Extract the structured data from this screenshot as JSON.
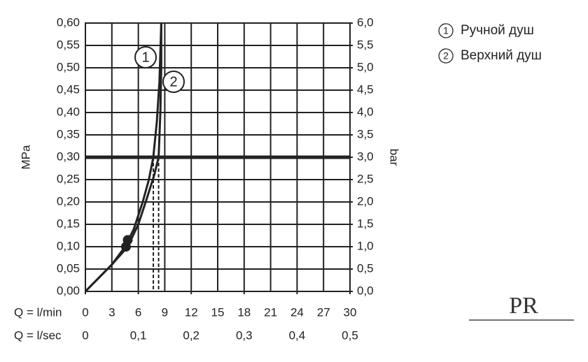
{
  "chart_data": {
    "type": "line",
    "xlabel": "Q = l/min",
    "x2label": "Q = l/sec",
    "ylabel": "MPa",
    "y2label": "bar",
    "xlim": [
      0,
      30
    ],
    "xticks": [
      0,
      3,
      6,
      9,
      12,
      15,
      18,
      21,
      24,
      27,
      30
    ],
    "x2lim": [
      0,
      0.5
    ],
    "x2ticks": [
      0,
      {
        "value": 0.1,
        "label": "0,1"
      },
      {
        "value": 0.2,
        "label": "0,2"
      },
      {
        "value": 0.3,
        "label": "0,3"
      },
      {
        "value": 0.4,
        "label": "0,4"
      },
      {
        "value": 0.5,
        "label": "0,5"
      }
    ],
    "ylim": [
      0,
      0.6
    ],
    "yticks": [
      {
        "value": 0,
        "label": "0,00"
      },
      {
        "value": 0.05,
        "label": "0,05"
      },
      {
        "value": 0.1,
        "label": "0,10"
      },
      {
        "value": 0.15,
        "label": "0,15"
      },
      {
        "value": 0.2,
        "label": "0,20"
      },
      {
        "value": 0.25,
        "label": "0,25"
      },
      {
        "value": 0.3,
        "label": "0,30"
      },
      {
        "value": 0.35,
        "label": "0,35"
      },
      {
        "value": 0.4,
        "label": "0,40"
      },
      {
        "value": 0.45,
        "label": "0,45"
      },
      {
        "value": 0.5,
        "label": "0,50"
      },
      {
        "value": 0.55,
        "label": "0,55"
      },
      {
        "value": 0.6,
        "label": "0,60"
      }
    ],
    "y2lim": [
      0,
      6
    ],
    "y2ticks": [
      {
        "value": 0,
        "label": "0,0"
      },
      {
        "value": 0.5,
        "label": "0,5"
      },
      {
        "value": 1,
        "label": "1,0"
      },
      {
        "value": 1.5,
        "label": "1,5"
      },
      {
        "value": 2,
        "label": "2,0"
      },
      {
        "value": 2.5,
        "label": "2,5"
      },
      {
        "value": 3,
        "label": "3,0"
      },
      {
        "value": 3.5,
        "label": "3,5"
      },
      {
        "value": 4,
        "label": "4,0"
      },
      {
        "value": 4.5,
        "label": "4,5"
      },
      {
        "value": 5,
        "label": "5,0"
      },
      {
        "value": 5.5,
        "label": "5,5"
      },
      {
        "value": 6,
        "label": "6,0"
      }
    ],
    "grid": true,
    "reference_y": 0.3,
    "reference_x": [
      7.7,
      8.3
    ],
    "highlight_points": [
      {
        "x": 4.6,
        "y": 0.1
      },
      {
        "x": 4.8,
        "y": 0.115
      }
    ],
    "series": [
      {
        "name": "Ручной душ",
        "label": "1",
        "color": "#222",
        "x": [
          0,
          1.5,
          3,
          4.5,
          5.5,
          6.5,
          7.2,
          7.7,
          8.1,
          8.4,
          8.6
        ],
        "values": [
          0,
          0.03,
          0.06,
          0.1,
          0.14,
          0.2,
          0.25,
          0.3,
          0.38,
          0.47,
          0.6
        ]
      },
      {
        "name": "Верхний душ",
        "label": "2",
        "color": "#222",
        "x": [
          0,
          1.5,
          3,
          4.8,
          6,
          7,
          7.8,
          8.3,
          8.5,
          8.6,
          8.6
        ],
        "values": [
          0,
          0.03,
          0.06,
          0.1,
          0.15,
          0.21,
          0.26,
          0.3,
          0.4,
          0.5,
          0.6
        ]
      }
    ]
  },
  "watermark": "PR"
}
